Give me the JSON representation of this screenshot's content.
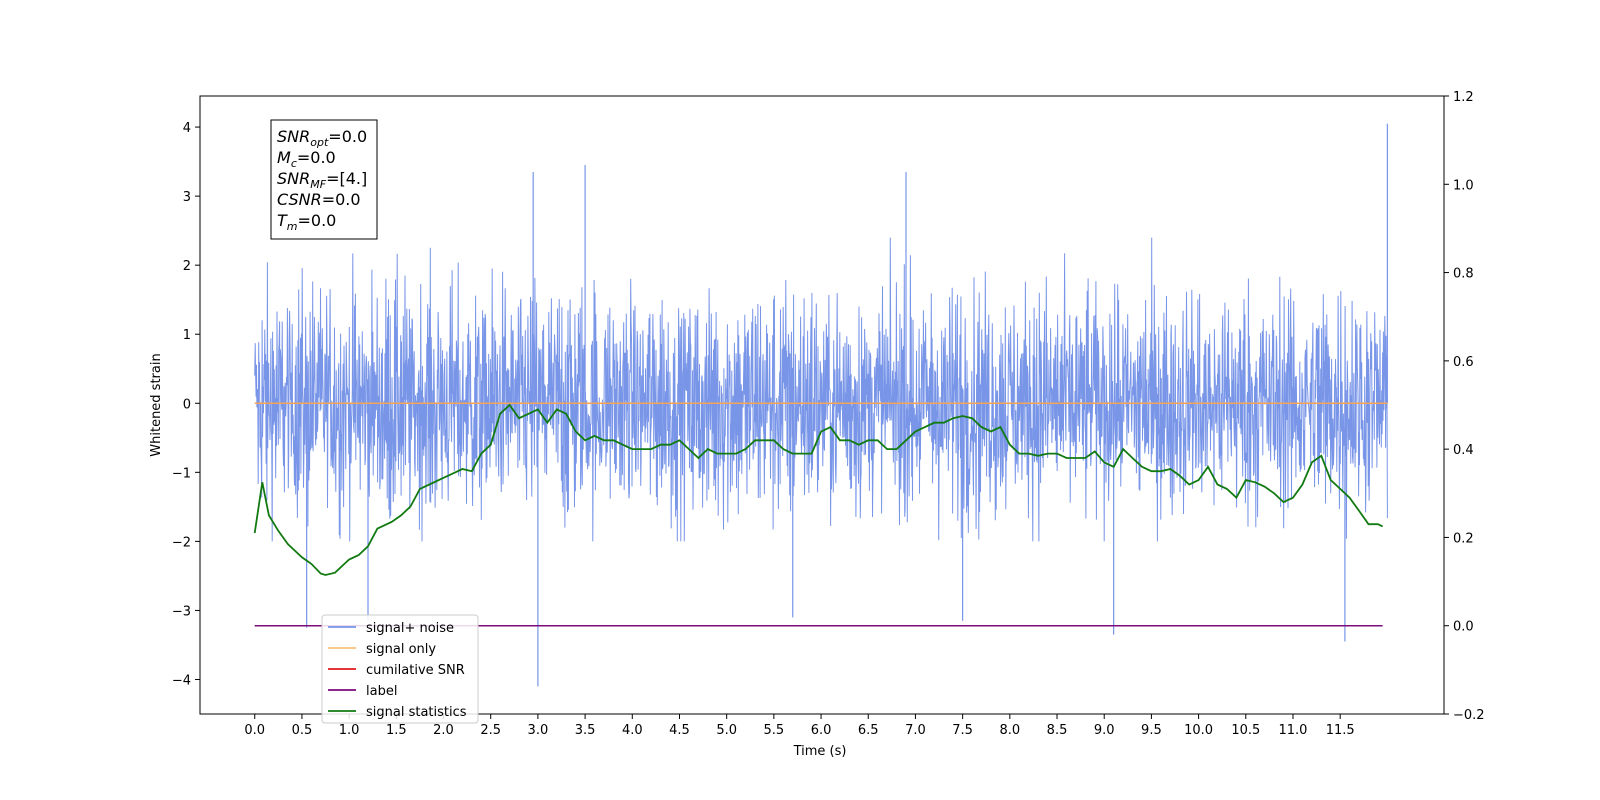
{
  "chart_data": {
    "type": "line",
    "xlabel": "Time (s)",
    "ylabel": "Whitened strain",
    "x_ticks": [
      "0.0",
      "0.5",
      "1.0",
      "1.5",
      "2.0",
      "2.5",
      "3.0",
      "3.5",
      "4.0",
      "4.5",
      "5.0",
      "5.5",
      "6.0",
      "6.5",
      "7.0",
      "7.5",
      "8.0",
      "8.5",
      "9.0",
      "9.5",
      "10.0",
      "10.5",
      "11.0",
      "11.5"
    ],
    "xlim": [
      -0.58,
      12.6
    ],
    "ylim_left": [
      -4.5,
      4.45
    ],
    "y_ticks_left": [
      "−4",
      "−3",
      "−2",
      "−1",
      "0",
      "1",
      "2",
      "3",
      "4"
    ],
    "ylim_right": [
      -0.2,
      1.2
    ],
    "y_ticks_right": [
      "−0.2",
      "0.0",
      "0.2",
      "0.4",
      "0.6",
      "0.8",
      "1.0",
      "1.2"
    ],
    "noise": {
      "x_range": [
        0.0,
        12.0
      ],
      "baseline": 0.0,
      "band_low": -2.0,
      "band_high": 2.4,
      "spikes": [
        {
          "x": 0.55,
          "y": -3.25
        },
        {
          "x": 1.2,
          "y": -3.15
        },
        {
          "x": 3.0,
          "y": -4.1
        },
        {
          "x": 5.7,
          "y": -3.1
        },
        {
          "x": 7.5,
          "y": -3.15
        },
        {
          "x": 9.1,
          "y": -3.35
        },
        {
          "x": 11.55,
          "y": -3.45
        },
        {
          "x": 12.0,
          "y": 4.05
        },
        {
          "x": 3.5,
          "y": 3.45
        },
        {
          "x": 2.95,
          "y": 3.35
        },
        {
          "x": 6.9,
          "y": 3.35
        }
      ]
    },
    "series": [
      {
        "name": "signal+ noise",
        "color": "#7895e8",
        "axis": "left"
      },
      {
        "name": "signal only",
        "color": "#f5a356",
        "axis": "left",
        "x": [
          0.0,
          12.0
        ],
        "values": [
          0.0,
          0.0
        ]
      },
      {
        "name": "cumilative SNR",
        "color": "#e41a1c",
        "axis": "right"
      },
      {
        "name": "label",
        "color": "#7b0a7b",
        "axis": "right",
        "x": [
          0.0,
          11.95
        ],
        "values": [
          0.0,
          0.0
        ]
      },
      {
        "name": "signal statistics",
        "color": "#117a11",
        "axis": "right",
        "x": [
          0.0,
          0.08,
          0.15,
          0.25,
          0.35,
          0.5,
          0.6,
          0.7,
          0.75,
          0.85,
          0.95,
          1.0,
          1.1,
          1.2,
          1.3,
          1.45,
          1.55,
          1.65,
          1.75,
          1.85,
          2.0,
          2.1,
          2.2,
          2.3,
          2.4,
          2.5,
          2.6,
          2.7,
          2.8,
          2.9,
          3.0,
          3.1,
          3.2,
          3.3,
          3.4,
          3.5,
          3.6,
          3.7,
          3.8,
          3.9,
          4.0,
          4.1,
          4.2,
          4.3,
          4.4,
          4.5,
          4.6,
          4.7,
          4.8,
          4.9,
          5.0,
          5.1,
          5.2,
          5.3,
          5.4,
          5.5,
          5.6,
          5.7,
          5.8,
          5.9,
          6.0,
          6.1,
          6.2,
          6.3,
          6.4,
          6.5,
          6.6,
          6.7,
          6.8,
          6.9,
          7.0,
          7.1,
          7.2,
          7.3,
          7.4,
          7.5,
          7.6,
          7.7,
          7.8,
          7.9,
          8.0,
          8.1,
          8.2,
          8.3,
          8.4,
          8.5,
          8.6,
          8.7,
          8.8,
          8.9,
          9.0,
          9.1,
          9.2,
          9.3,
          9.4,
          9.5,
          9.6,
          9.7,
          9.8,
          9.9,
          10.0,
          10.1,
          10.2,
          10.3,
          10.4,
          10.5,
          10.6,
          10.7,
          10.8,
          10.9,
          11.0,
          11.1,
          11.2,
          11.3,
          11.4,
          11.5,
          11.6,
          11.7,
          11.8,
          11.9,
          11.95
        ],
        "values": [
          0.21,
          0.325,
          0.25,
          0.215,
          0.185,
          0.155,
          0.14,
          0.118,
          0.115,
          0.12,
          0.14,
          0.15,
          0.16,
          0.18,
          0.22,
          0.235,
          0.25,
          0.27,
          0.31,
          0.32,
          0.335,
          0.345,
          0.355,
          0.35,
          0.39,
          0.41,
          0.48,
          0.5,
          0.47,
          0.48,
          0.49,
          0.46,
          0.49,
          0.48,
          0.44,
          0.42,
          0.43,
          0.42,
          0.42,
          0.41,
          0.4,
          0.4,
          0.4,
          0.41,
          0.41,
          0.42,
          0.4,
          0.38,
          0.4,
          0.39,
          0.39,
          0.39,
          0.4,
          0.42,
          0.42,
          0.42,
          0.4,
          0.39,
          0.39,
          0.39,
          0.44,
          0.45,
          0.42,
          0.42,
          0.41,
          0.42,
          0.42,
          0.4,
          0.4,
          0.42,
          0.44,
          0.45,
          0.46,
          0.46,
          0.47,
          0.475,
          0.47,
          0.45,
          0.44,
          0.45,
          0.41,
          0.39,
          0.39,
          0.385,
          0.39,
          0.39,
          0.38,
          0.38,
          0.38,
          0.395,
          0.37,
          0.36,
          0.4,
          0.38,
          0.36,
          0.35,
          0.35,
          0.355,
          0.34,
          0.32,
          0.33,
          0.36,
          0.32,
          0.31,
          0.29,
          0.33,
          0.325,
          0.315,
          0.3,
          0.28,
          0.29,
          0.32,
          0.37,
          0.385,
          0.33,
          0.31,
          0.29,
          0.26,
          0.23,
          0.23,
          0.225
        ],
        "line_width": 1.8
      }
    ],
    "legend": {
      "placement": "lower-left",
      "entries": [
        {
          "label": "signal+ noise",
          "color": "#7895e8"
        },
        {
          "label": "signal only",
          "color": "#f5c27a"
        },
        {
          "label": "cumilative SNR",
          "color": "#e41a1c"
        },
        {
          "label": "label",
          "color": "#7b0a7b"
        },
        {
          "label": "signal statistics",
          "color": "#117a11"
        }
      ]
    },
    "info_box": {
      "placement": "top-left",
      "lines": [
        {
          "main": "SNR",
          "sub": "opt",
          "value": "=0.0"
        },
        {
          "main": "M",
          "sub": "c",
          "value": "=0.0"
        },
        {
          "main": "SNR",
          "sub": "MF",
          "value": "=[4.]"
        },
        {
          "main": "CSNR",
          "sub": "",
          "value": "=0.0"
        },
        {
          "main": "T",
          "sub": "m",
          "value": "=0.0"
        }
      ]
    }
  }
}
